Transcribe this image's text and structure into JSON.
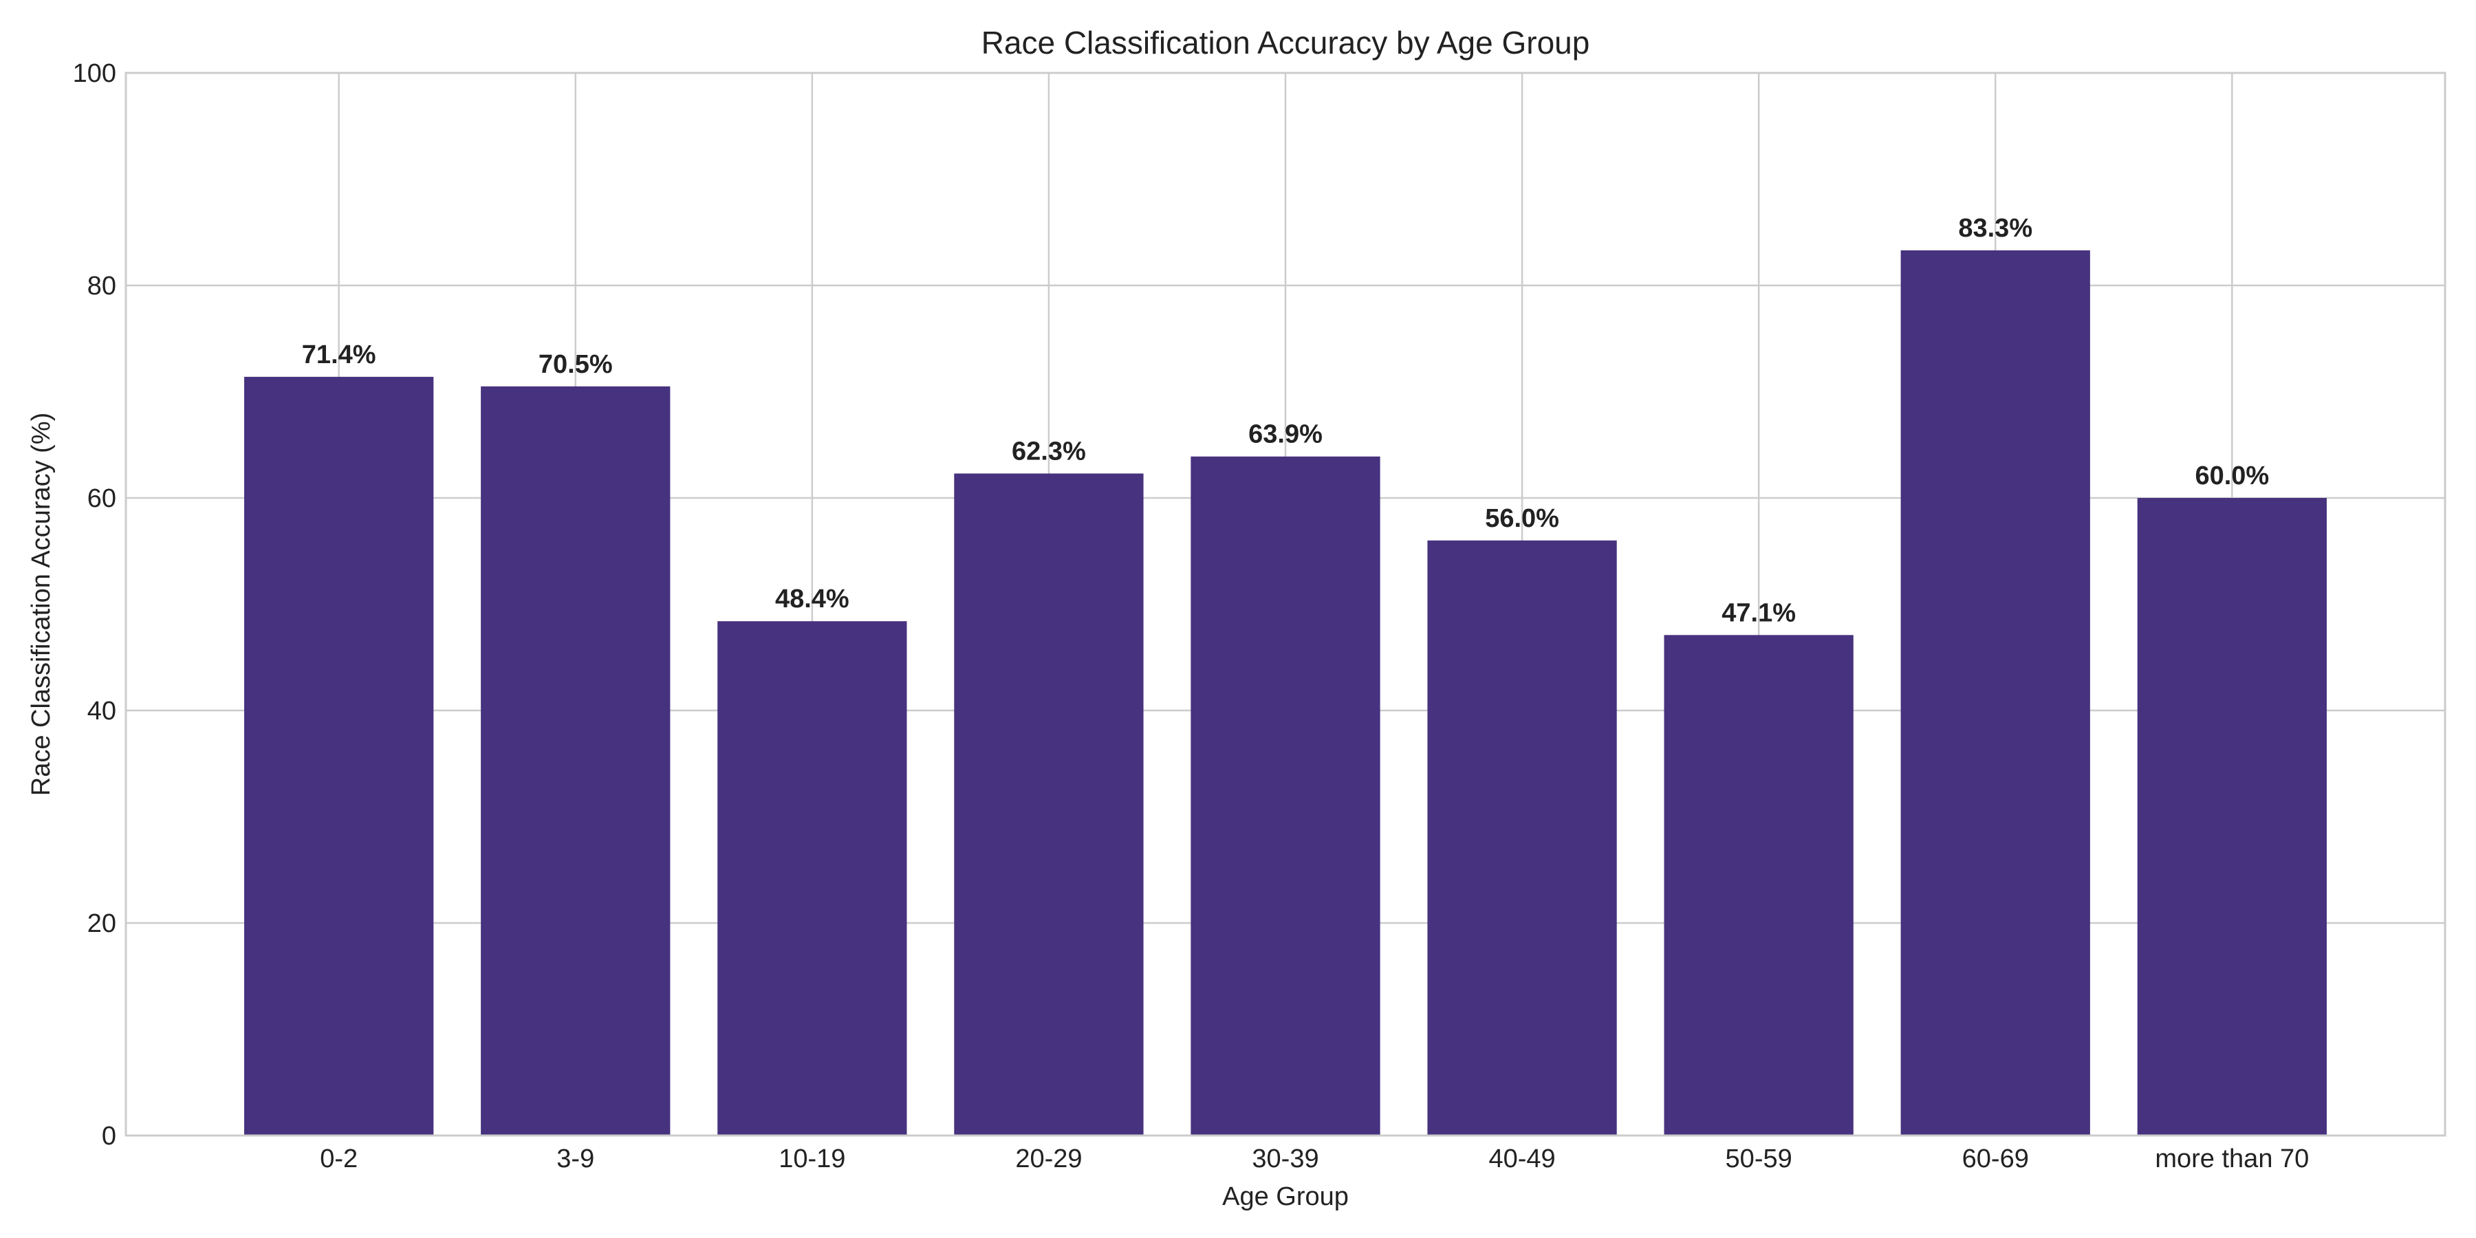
{
  "chart_data": {
    "type": "bar",
    "title": "Race Classification Accuracy by Age Group",
    "xlabel": "Age Group",
    "ylabel": "Race Classification Accuracy (%)",
    "categories": [
      "0-2",
      "3-9",
      "10-19",
      "20-29",
      "30-39",
      "40-49",
      "50-59",
      "60-69",
      "more than 70"
    ],
    "values": [
      71.4,
      70.5,
      48.4,
      62.3,
      63.9,
      56.0,
      47.1,
      83.3,
      60.0
    ],
    "data_labels": [
      "71.4%",
      "70.5%",
      "48.4%",
      "62.3%",
      "63.9%",
      "56.0%",
      "47.1%",
      "83.3%",
      "60.0%"
    ],
    "ylim": [
      0,
      100
    ],
    "yticks": [
      0,
      20,
      40,
      60,
      80,
      100
    ],
    "ytick_labels": [
      "0",
      "20",
      "40",
      "60",
      "80",
      "100"
    ],
    "grid": true,
    "bar_color": "#46327e"
  }
}
